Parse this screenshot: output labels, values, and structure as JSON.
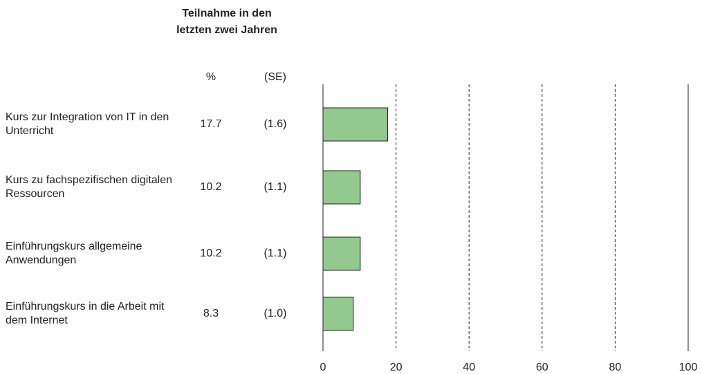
{
  "chart_data": {
    "type": "bar",
    "orientation": "horizontal",
    "title": "Teilnahme in den letzten zwei Jahren",
    "value_header": "%",
    "se_header": "(SE)",
    "categories": [
      "Kurs zur Integration von IT in den Unterricht",
      "Kurs zu fachspezifischen digitalen Ressourcen",
      "Einführungskurs allgemeine Anwendungen",
      "Einführungskurs in die Arbeit mit dem Internet"
    ],
    "values": [
      17.7,
      10.2,
      10.2,
      8.3
    ],
    "se": [
      1.6,
      1.1,
      1.1,
      1.0
    ],
    "se_labels": [
      "(1.6)",
      "(1.1)",
      "(1.1)",
      "(1.0)"
    ],
    "color": "#93c98e",
    "xlim": [
      0,
      100
    ],
    "xticks": [
      0,
      20,
      40,
      60,
      80,
      100
    ],
    "grid": true
  }
}
